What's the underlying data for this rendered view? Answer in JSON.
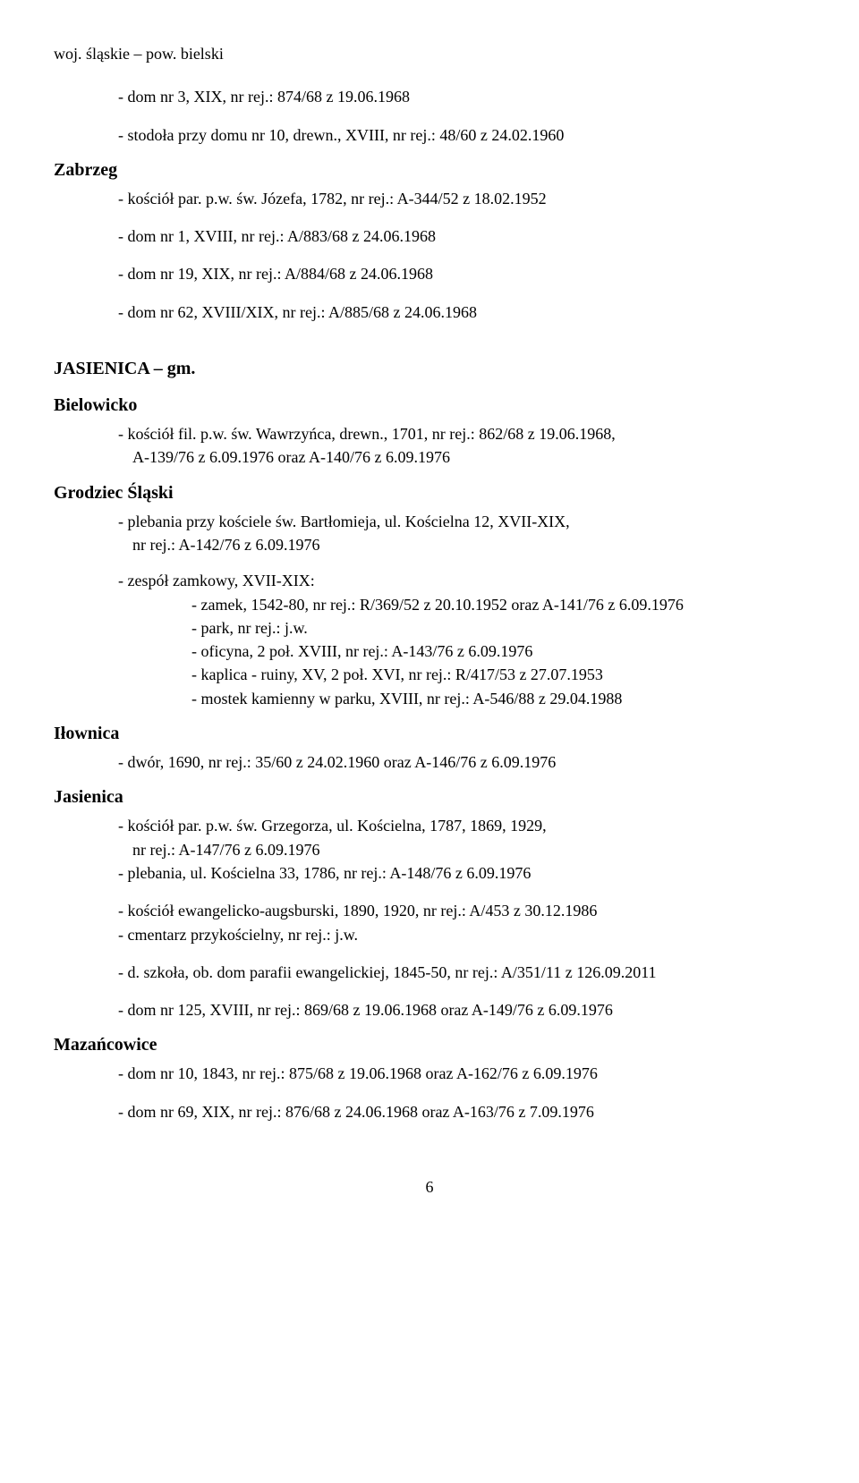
{
  "header": "woj. śląskie – pow. bielski",
  "intro_entries": [
    "- dom nr 3, XIX, nr rej.: 874/68 z 19.06.1968",
    "- stodoła przy domu nr 10, drewn., XVIII, nr rej.: 48/60 z 24.02.1960"
  ],
  "zabrzeg": {
    "title": "Zabrzeg",
    "entries": [
      "- kościół par. p.w. św. Józefa, 1782, nr rej.: A-344/52 z 18.02.1952",
      "- dom nr 1, XVIII, nr rej.: A/883/68 z 24.06.1968",
      "- dom nr 19, XIX, nr rej.: A/884/68 z 24.06.1968",
      "- dom nr 62, XVIII/XIX, nr rej.: A/885/68 z 24.06.1968"
    ]
  },
  "jasienica_gm": {
    "title": "JASIENICA – gm."
  },
  "bielowicko": {
    "title": "Bielowicko",
    "line1": "- kościół fil. p.w. św. Wawrzyńca, drewn., 1701, nr rej.: 862/68 z 19.06.1968,",
    "line2": "A-139/76 z 6.09.1976 oraz A-140/76 z 6.09.1976"
  },
  "grodziec": {
    "title": "Grodziec Śląski",
    "line1": "- plebania przy kościele św. Bartłomieja, ul. Kościelna 12, XVII-XIX,",
    "line2": "nr rej.: A-142/76 z 6.09.1976",
    "zespol": "- zespół zamkowy, XVII-XIX:",
    "sub": [
      "- zamek, 1542-80, nr rej.: R/369/52 z 20.10.1952 oraz A-141/76 z 6.09.1976",
      "- park, nr rej.: j.w.",
      "- oficyna, 2 poł. XVIII, nr rej.: A-143/76 z 6.09.1976",
      "- kaplica - ruiny, XV, 2 poł. XVI, nr rej.: R/417/53 z 27.07.1953",
      "- mostek kamienny w parku, XVIII, nr rej.: A-546/88 z 29.04.1988"
    ]
  },
  "ilownica": {
    "title": "Iłownica",
    "entry": "- dwór, 1690, nr rej.: 35/60 z 24.02.1960 oraz A-146/76 z 6.09.1976"
  },
  "jasienica": {
    "title": "Jasienica",
    "line1": "- kościół par. p.w. św. Grzegorza, ul. Kościelna, 1787, 1869, 1929,",
    "line2": "nr rej.: A-147/76 z 6.09.1976",
    "line3": "- plebania, ul. Kościelna 33, 1786,  nr rej.: A-148/76 z 6.09.1976",
    "line4": "- kościół ewangelicko-augsburski, 1890, 1920, nr rej.: A/453 z 30.12.1986",
    "line5": "- cmentarz przykościelny, nr rej.: j.w.",
    "line6": "- d. szkoła, ob. dom parafii ewangelickiej, 1845-50, nr rej.: A/351/11 z 126.09.2011",
    "line7": "- dom nr 125, XVIII, nr rej.: 869/68 z 19.06.1968 oraz A-149/76 z 6.09.1976"
  },
  "mazancowice": {
    "title": "Mazańcowice",
    "line1": "- dom nr 10, 1843, nr rej.: 875/68 z 19.06.1968 oraz A-162/76 z 6.09.1976",
    "line2": "- dom nr 69, XIX, nr rej.: 876/68 z 24.06.1968 oraz A-163/76 z 7.09.1976"
  },
  "page_number": "6"
}
